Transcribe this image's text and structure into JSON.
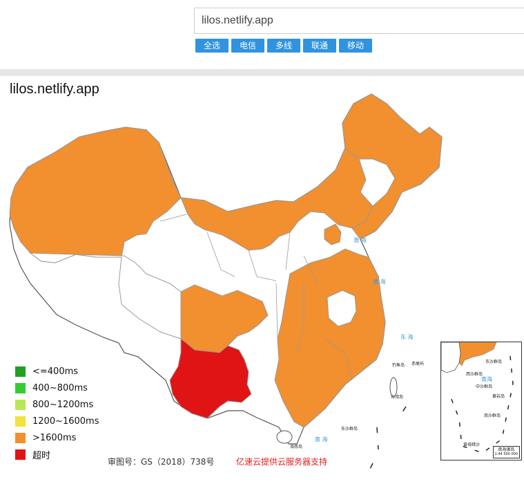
{
  "search": {
    "value": "lilos.netlify.app"
  },
  "buttons": [
    "全选",
    "电信",
    "多线",
    "联通",
    "移动"
  ],
  "map": {
    "title": "lilos.netlify.app",
    "legend": [
      {
        "label": "<=400ms",
        "color": "#22a022"
      },
      {
        "label": "400~800ms",
        "color": "#33cc33"
      },
      {
        "label": "800~1200ms",
        "color": "#b8e854"
      },
      {
        "label": "1200~1600ms",
        "color": "#f2e23c"
      },
      {
        "label": ">1600ms",
        "color": "#f28f2f"
      },
      {
        "label": "超时",
        "color": "#e01414"
      }
    ],
    "approval_number": "审图号：GS（2018）738号",
    "support_text": "亿速云提供云服务器支持",
    "colors": {
      "orange": "#f28f2f",
      "red": "#e01414",
      "white": "#ffffff",
      "border": "#999999"
    },
    "sea_labels": [
      "渤 海",
      "黄 海",
      "东 海",
      "南 海"
    ],
    "island_labels": [
      "钓鱼岛",
      "赤尾屿",
      "台湾岛",
      "东沙群岛",
      "海南岛"
    ],
    "inset": {
      "label": "南海诸岛",
      "scale": "1:44 500 000",
      "island_labels": [
        "东沙群岛",
        "南海",
        "西沙群岛",
        "中沙群岛",
        "黄岩岛",
        "南沙群岛",
        "曾母暗沙"
      ]
    }
  }
}
